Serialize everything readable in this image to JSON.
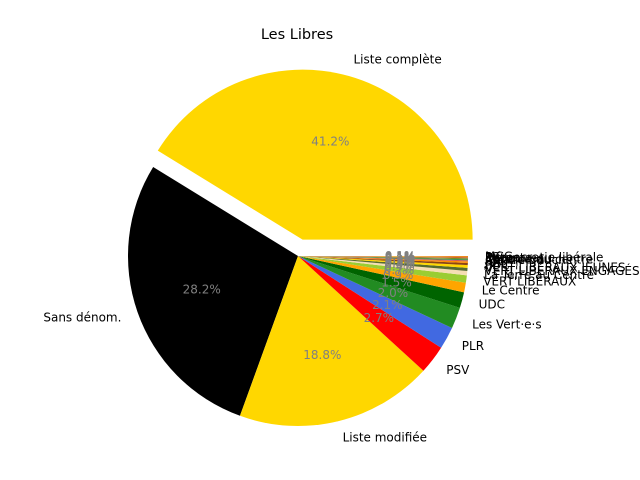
{
  "chart_data": {
    "type": "pie",
    "title": "Les Libres",
    "start_angle_deg": 0,
    "counterclock": true,
    "percent_format": "{:.1f}%",
    "slices": [
      {
        "label": "Liste complète",
        "value": 40.9,
        "color": "#FFD700",
        "explode": true
      },
      {
        "label": "Sans dénom.",
        "value": 28.0,
        "color": "#000000"
      },
      {
        "label": "Liste modifiée",
        "value": 18.6,
        "color": "#FFD700"
      },
      {
        "label": "PSV",
        "value": 2.7,
        "color": "#FF0000"
      },
      {
        "label": "PLR",
        "value": 2.1,
        "color": "#4169E1"
      },
      {
        "label": "Les Vert·e·s",
        "value": 2.0,
        "color": "#228B22"
      },
      {
        "label": "UDC",
        "value": 1.5,
        "color": "#006400"
      },
      {
        "label": "Le Centre",
        "value": 0.9,
        "color": "#FFA500"
      },
      {
        "label": "VERT'LIBÉRAUX",
        "value": 0.7,
        "color": "#9ACD32"
      },
      {
        "label": "La Terre au Centre",
        "value": 0.4,
        "color": "#F5DEB3"
      },
      {
        "label": "VERT'LIBÉRAUX ENGAGÉS",
        "value": 0.3,
        "color": "#556B2F"
      },
      {
        "label": "VERT'LIBÉRAUX JEUNES",
        "value": 0.25,
        "color": "#FFD700"
      },
      {
        "label": "PDC",
        "value": 0.2,
        "color": "#8B4513"
      },
      {
        "label": "JVP",
        "value": 0.15,
        "color": "#FF8C00"
      },
      {
        "label": "JDC",
        "value": 0.1,
        "color": "#CD5C5C"
      },
      {
        "label": "Centre gauche",
        "value": 0.1,
        "color": "#2E8B57"
      },
      {
        "label": "Alliance du centre",
        "value": 0.05,
        "color": "#808000"
      },
      {
        "label": "Renouveau",
        "value": 0.05,
        "color": "#6B8E23"
      },
      {
        "label": "Entente",
        "value": 0.05,
        "color": "#B22222"
      },
      {
        "label": "Démocratie libérale",
        "value": 0.05,
        "color": "#DAA520"
      },
      {
        "label": "PS",
        "value": 0.05,
        "color": "#DC143C"
      },
      {
        "label": "MCG",
        "value": 0.05,
        "color": "#FFFF00"
      }
    ]
  }
}
